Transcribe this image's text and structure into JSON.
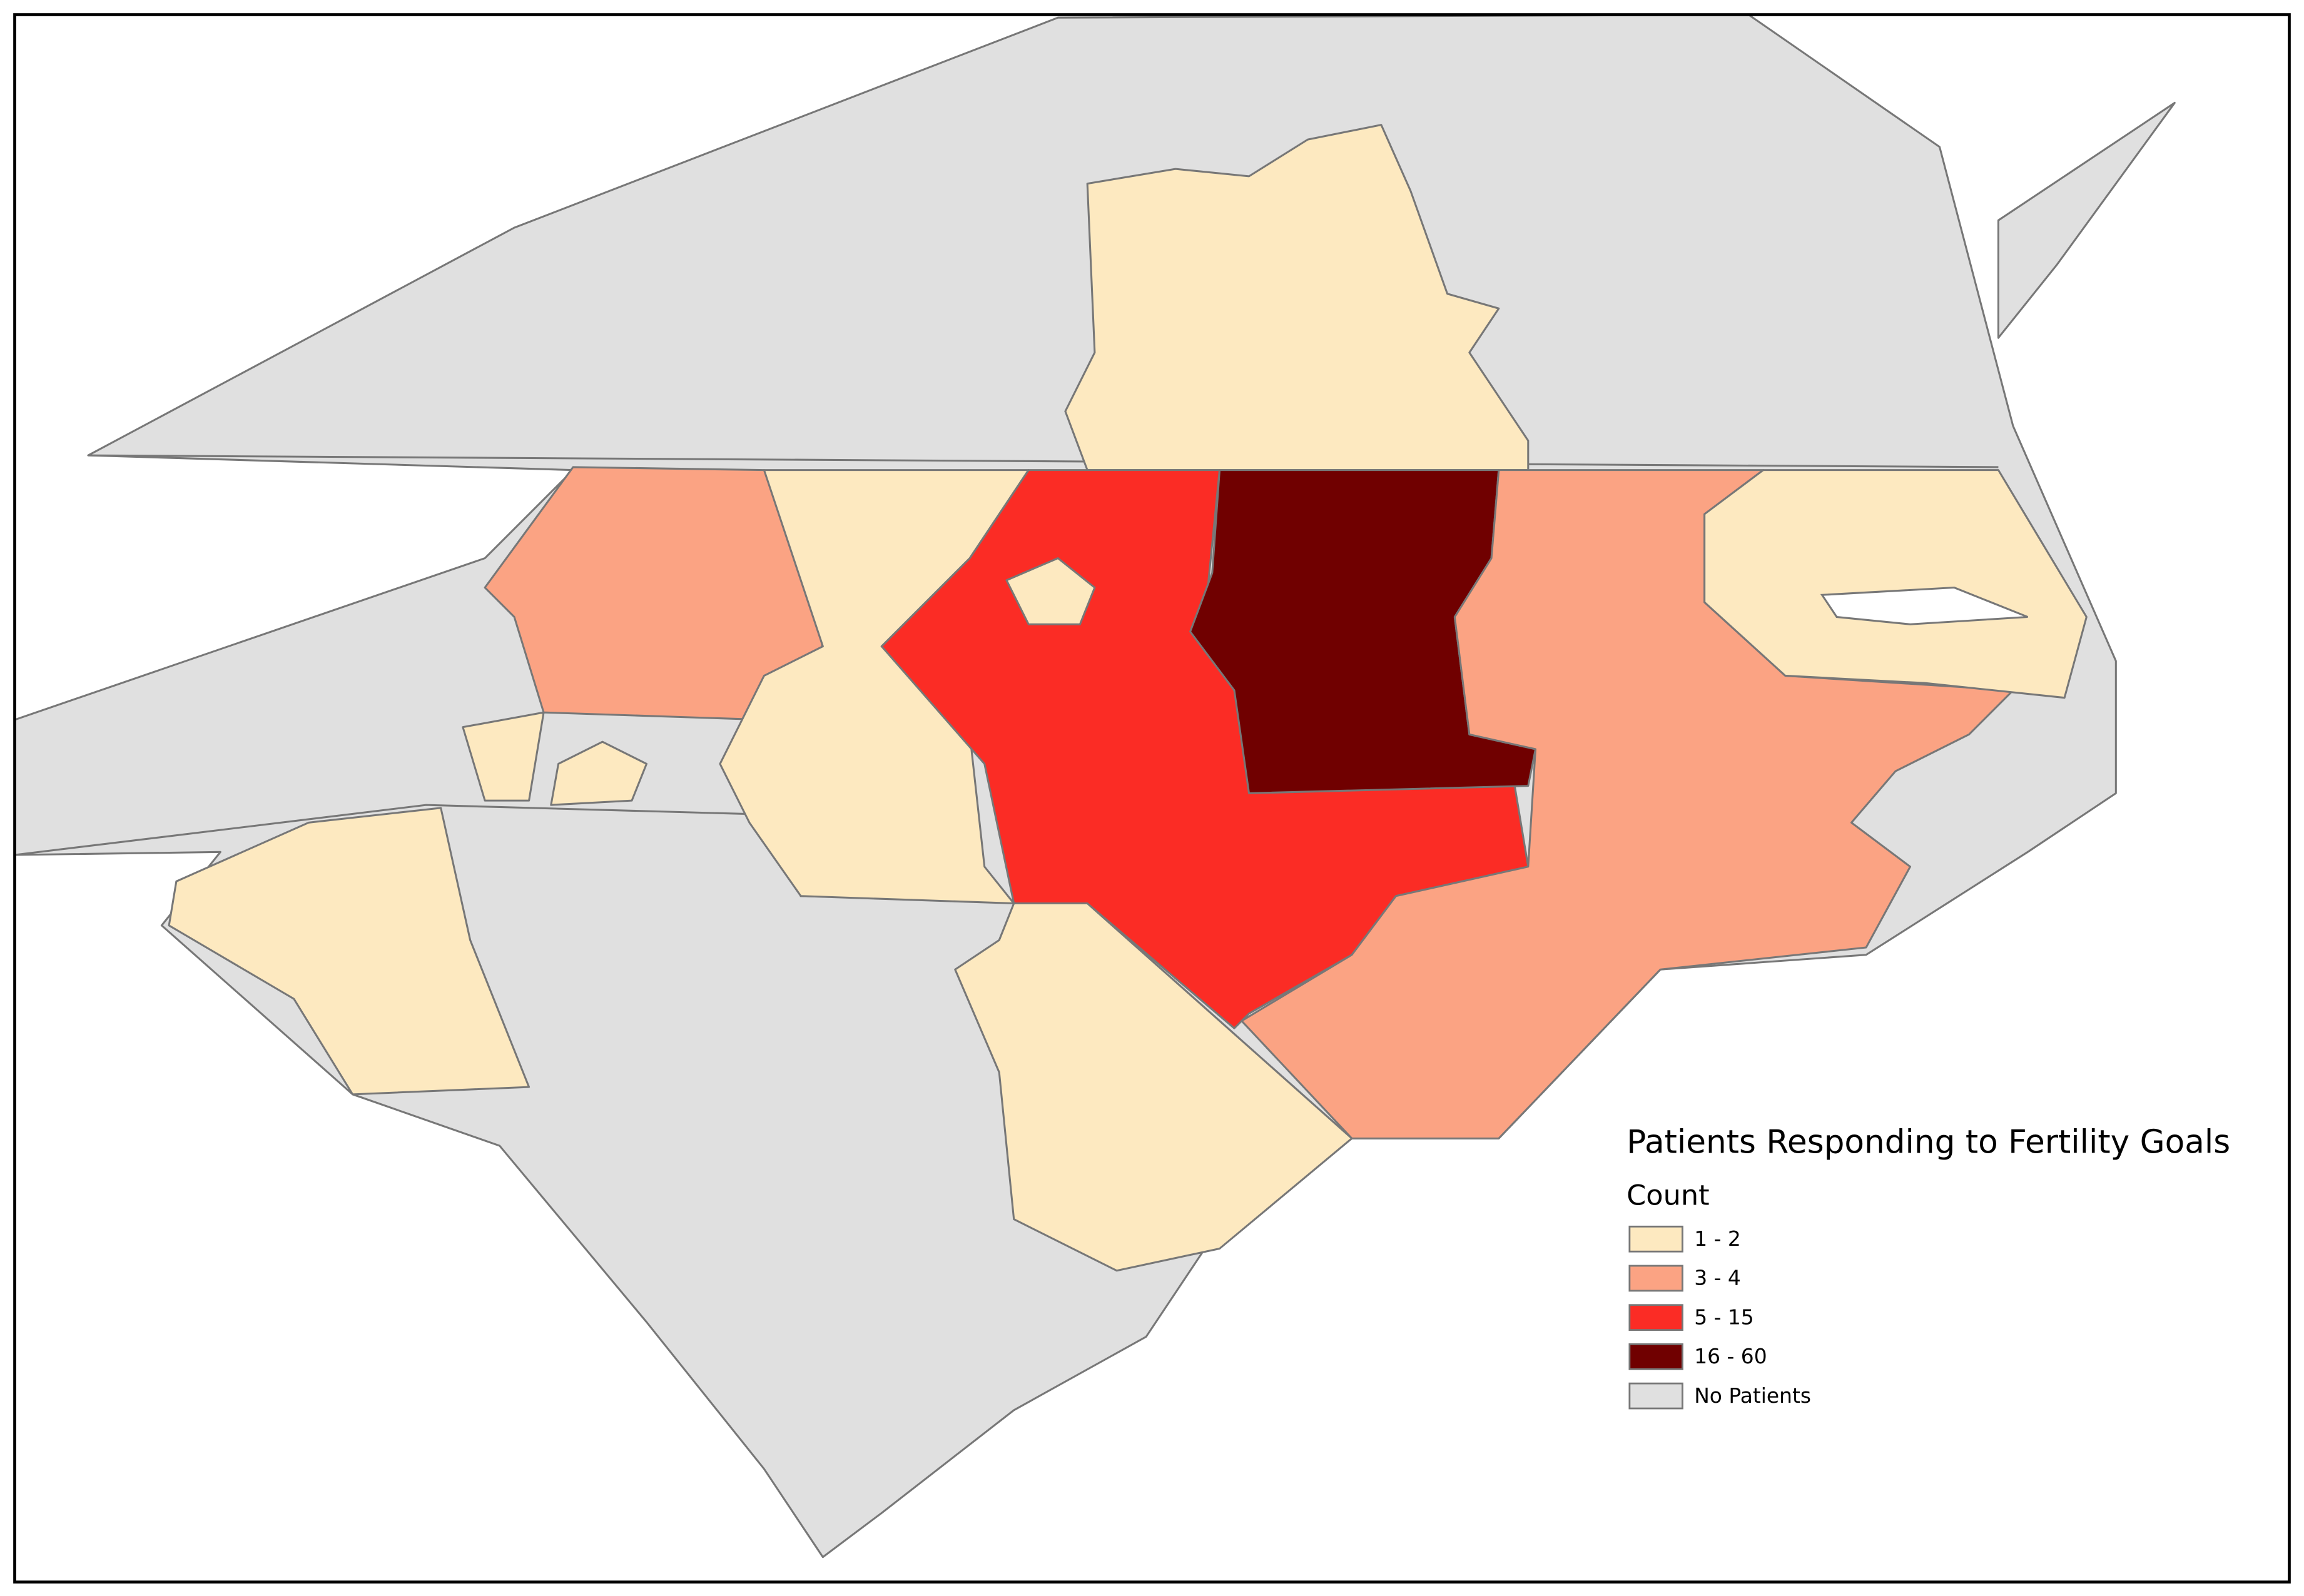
{
  "legend": {
    "title": "Patients Responding to Fertility Goals",
    "subtitle": "Count",
    "items": [
      {
        "label": "1 - 2",
        "color": "#fde9c0"
      },
      {
        "label": "3 - 4",
        "color": "#fba383"
      },
      {
        "label": "5 - 15",
        "color": "#fb2c25"
      },
      {
        "label": "16 - 60",
        "color": "#700000"
      },
      {
        "label": "No Patients",
        "color": "#e0e0e0"
      }
    ]
  }
}
